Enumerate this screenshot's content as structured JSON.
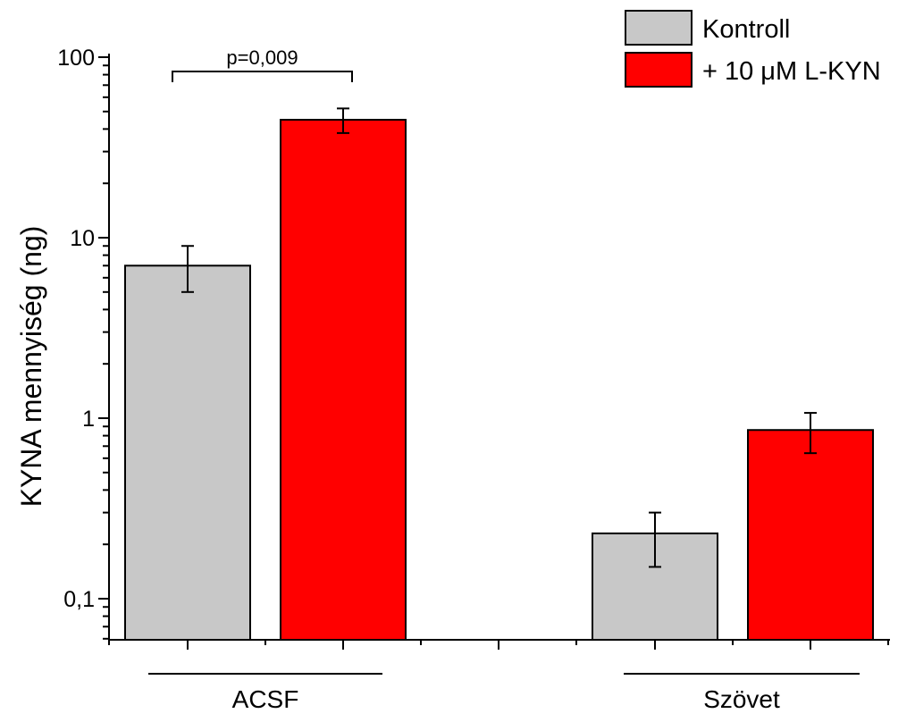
{
  "chart_data": {
    "type": "bar",
    "ylabel": "KYNA mennyiség (ng)",
    "yscale": "log",
    "ylim": [
      0.06,
      100
    ],
    "yticks": [
      {
        "value": 0.1,
        "label": "0,1"
      },
      {
        "value": 1,
        "label": "1"
      },
      {
        "value": 10,
        "label": "10"
      },
      {
        "value": 100,
        "label": "100"
      }
    ],
    "categories": [
      "ACSF",
      "Szövet"
    ],
    "series": [
      {
        "name": "Kontroll",
        "color": "#c8c8c8",
        "values": [
          7.0,
          0.23
        ],
        "err_low": [
          5.0,
          0.15
        ],
        "err_high": [
          9.0,
          0.3
        ]
      },
      {
        "name": "+ 10 μM L-KYN",
        "color": "#ff0000",
        "values": [
          45,
          0.86
        ],
        "err_low": [
          38,
          0.64
        ],
        "err_high": [
          52,
          1.07
        ]
      }
    ],
    "legend": "top-right",
    "grid": false,
    "annotations": [
      {
        "text": "p=0,009",
        "between": [
          "ACSF/Kontroll",
          "ACSF/+ 10 μM L-KYN"
        ]
      }
    ]
  }
}
